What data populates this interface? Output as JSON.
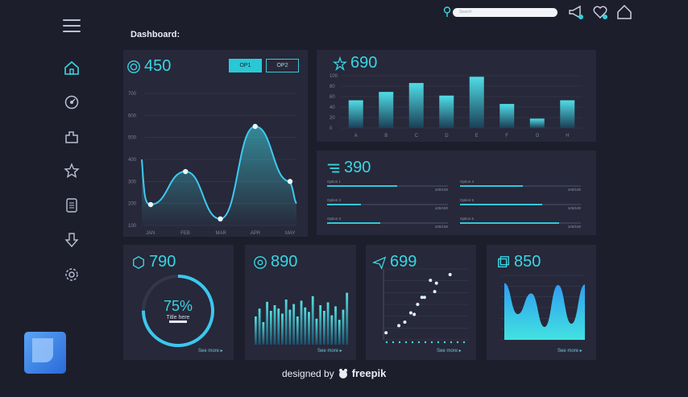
{
  "title": "Dashboard:",
  "search": {
    "placeholder": "Search"
  },
  "topbar": {
    "icons": [
      "location-pin-icon",
      "megaphone-icon",
      "heart-icon",
      "home-icon"
    ]
  },
  "sidebar": {
    "items": [
      "home-icon",
      "dashboard-dial-icon",
      "puzzle-icon",
      "star-icon",
      "document-icon",
      "download-icon",
      "settings-icon"
    ]
  },
  "card_main": {
    "value": "450",
    "buttons": [
      "OP1",
      "OP2"
    ],
    "y_ticks": [
      "700",
      "600",
      "500",
      "400",
      "300",
      "200",
      "100"
    ],
    "x_ticks": [
      "JAN",
      "FEB",
      "MAR",
      "APR",
      "MAY"
    ]
  },
  "card_bar": {
    "value": "690",
    "categories": [
      "A",
      "B",
      "C",
      "D",
      "E",
      "F",
      "G",
      "H"
    ],
    "y_ticks": [
      "100",
      "80",
      "60",
      "40",
      "20",
      "0"
    ]
  },
  "card_progress": {
    "value": "390",
    "rows": [
      {
        "label": "Option 1",
        "value": "100/100",
        "percent": 58
      },
      {
        "label": "Option 2",
        "value": "100/100",
        "percent": 28
      },
      {
        "label": "Option 3",
        "value": "100/100",
        "percent": 44
      },
      {
        "label": "Option 4",
        "value": "100/100",
        "percent": 52
      },
      {
        "label": "Option 5",
        "value": "100/100",
        "percent": 68
      },
      {
        "label": "Option 6",
        "value": "100/100",
        "percent": 82
      }
    ]
  },
  "card_donut": {
    "value": "790",
    "percent": "75%",
    "sub": "Title here",
    "fraction": 0.75,
    "see_more": "See more ▸"
  },
  "card_histo": {
    "value": "890",
    "see_more": "See more ▸"
  },
  "card_scatter": {
    "value": "699",
    "see_more": "See more ▸"
  },
  "card_area": {
    "value": "850",
    "see_more": "See more ▸"
  },
  "footer": {
    "prefix": "designed by",
    "brand": "freepik"
  },
  "colors": {
    "accent": "#39d6e4",
    "bg": "#1d1e2c",
    "card": "#272839"
  },
  "chart_data": [
    {
      "type": "line",
      "x": [
        "JAN",
        "FEB",
        "MAR",
        "APR",
        "MAY"
      ],
      "series": [
        {
          "values": [
            195,
            345,
            130,
            550,
            300
          ]
        }
      ],
      "ylim": [
        100,
        700
      ]
    },
    {
      "type": "bar",
      "categories": [
        "A",
        "B",
        "C",
        "D",
        "E",
        "F",
        "G",
        "H"
      ],
      "values": [
        53,
        69,
        86,
        62,
        98,
        46,
        18,
        53
      ],
      "ylim": [
        0,
        100
      ]
    },
    {
      "type": "bar",
      "values": [
        0.5,
        0.64,
        0.4,
        0.76,
        0.6,
        0.7,
        0.64,
        0.55,
        0.8,
        0.62,
        0.72,
        0.5,
        0.78,
        0.66,
        0.58,
        0.86,
        0.46,
        0.7,
        0.6,
        0.75,
        0.52,
        0.68,
        0.44,
        0.62,
        0.92
      ]
    },
    {
      "type": "scatter",
      "points": [
        [
          0.03,
          0.1
        ],
        [
          0.18,
          0.2
        ],
        [
          0.25,
          0.25
        ],
        [
          0.32,
          0.38
        ],
        [
          0.36,
          0.36
        ],
        [
          0.4,
          0.5
        ],
        [
          0.45,
          0.6
        ],
        [
          0.48,
          0.6
        ],
        [
          0.6,
          0.68
        ],
        [
          0.62,
          0.8
        ],
        [
          0.78,
          0.92
        ],
        [
          0.55,
          0.84
        ]
      ]
    },
    {
      "type": "area",
      "values": [
        0.88,
        0.4,
        0.72,
        0.2,
        0.85,
        0.25,
        0.86
      ]
    }
  ]
}
